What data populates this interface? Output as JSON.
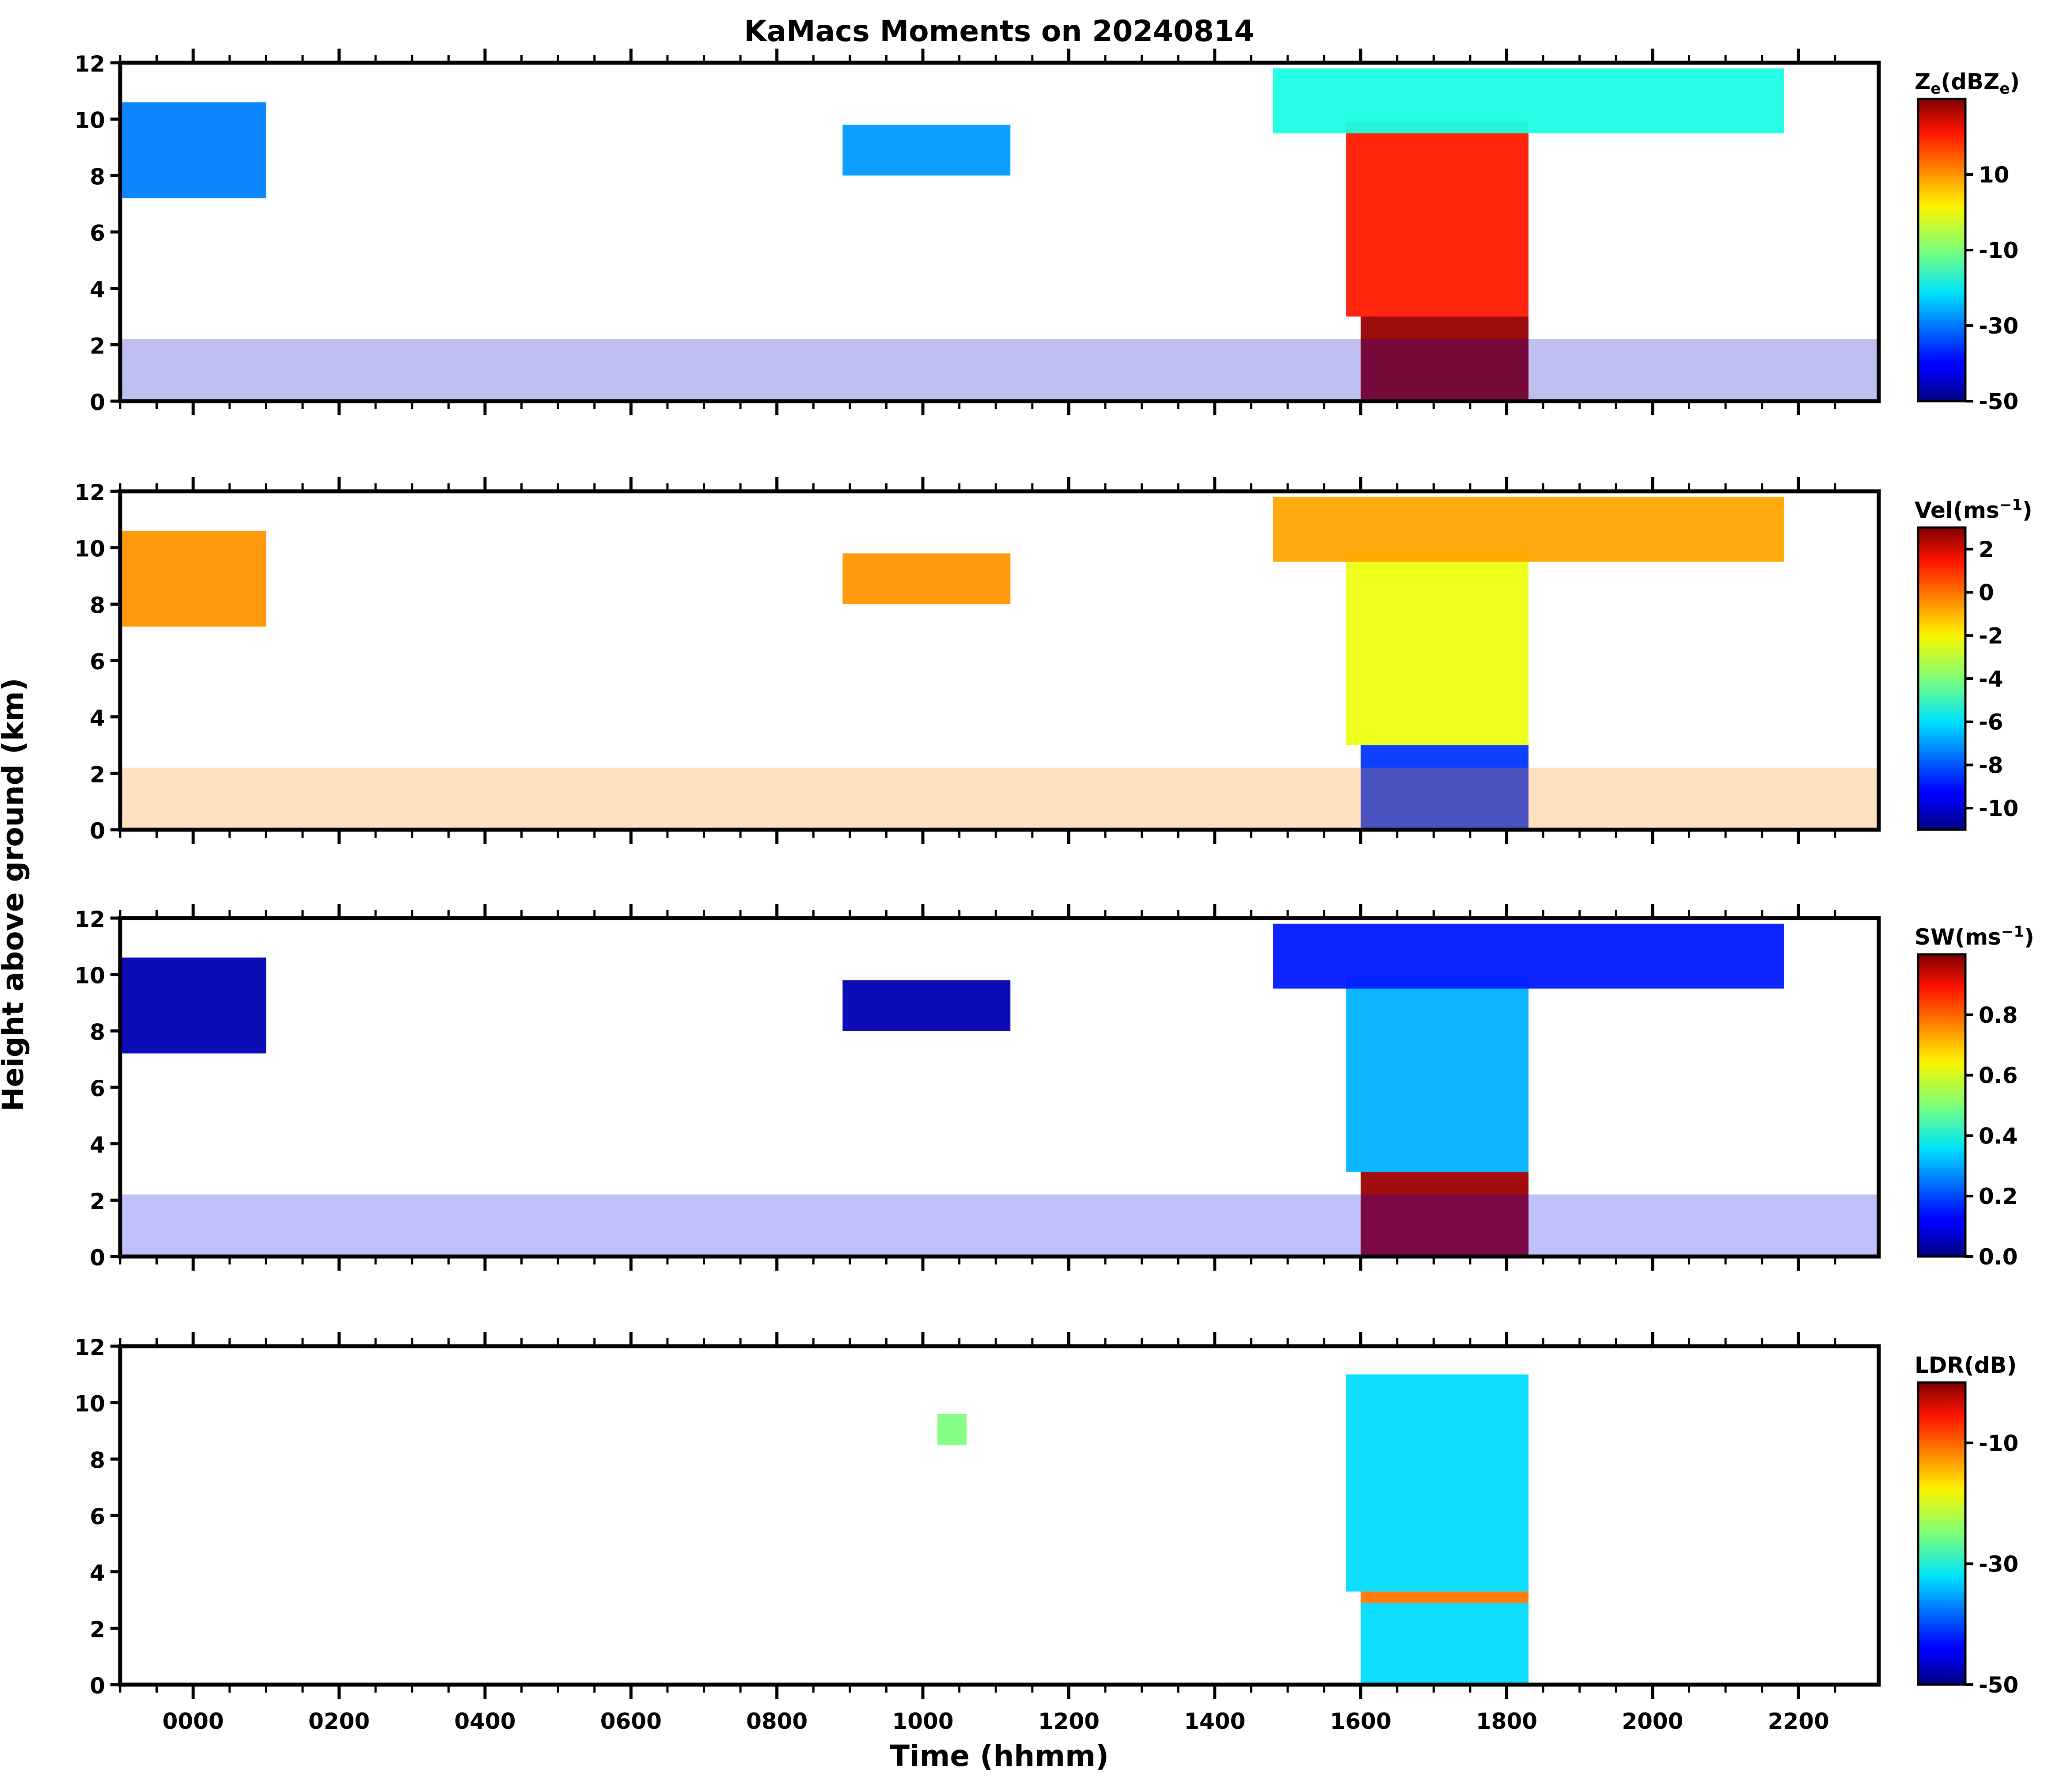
{
  "figure": {
    "title": "KaMacs Moments on 20240814",
    "ylabel": "Height above ground (km)",
    "xlabel": "Time (hhmm)"
  },
  "chart_data": [
    {
      "type": "heatmap",
      "panel": "reflectivity",
      "title": "KaMacs Moments on 20240814",
      "colorbar_label": "Ze(dBZe)",
      "colorbar_label_base": "Z",
      "colorbar_label_sub": "e",
      "colorbar_label_mid": "(dBZ",
      "colorbar_label_sub2": "e",
      "colorbar_label_end": ")",
      "colorbar_range": [
        -50,
        30
      ],
      "colorbar_ticks": [
        10,
        -10,
        -30,
        -50
      ],
      "colormap": "jet",
      "xlim_hours": [
        -1.0,
        23.1
      ],
      "ylim_km": [
        0,
        12
      ],
      "x_ticklabels": [],
      "y_ticklabels": [
        "0",
        "2",
        "4",
        "6",
        "8",
        "10",
        "12"
      ],
      "features": [
        {
          "t0": 15.8,
          "t1": 18.3,
          "h0": 3.0,
          "h1": 9.9,
          "value": 18
        },
        {
          "t0": 16.0,
          "t1": 18.3,
          "h0": 0.0,
          "h1": 3.0,
          "value": 28
        },
        {
          "t0": 14.8,
          "t1": 21.8,
          "h0": 9.5,
          "h1": 11.8,
          "value": -18
        },
        {
          "t0": -1.0,
          "t1": 1.0,
          "h0": 7.2,
          "h1": 10.6,
          "value": -30
        },
        {
          "t0": 8.9,
          "t1": 11.2,
          "h0": 8.0,
          "h1": 9.8,
          "value": -28
        },
        {
          "t0": -1.0,
          "t1": 23.1,
          "h0": 0.0,
          "h1": 2.2,
          "value": -45
        }
      ]
    },
    {
      "type": "heatmap",
      "panel": "velocity",
      "colorbar_label": "Vel(ms-1)",
      "colorbar_label_base": "Vel(ms",
      "colorbar_label_sup": "−1",
      "colorbar_label_end": ")",
      "colorbar_range": [
        -11,
        3
      ],
      "colorbar_ticks": [
        2,
        0,
        -2,
        -4,
        -6,
        -8,
        -10
      ],
      "colormap": "jet",
      "xlim_hours": [
        -1.0,
        23.1
      ],
      "ylim_km": [
        0,
        12
      ],
      "x_ticklabels": [],
      "y_ticklabels": [
        "0",
        "2",
        "4",
        "6",
        "8",
        "10",
        "12"
      ],
      "features": [
        {
          "t0": 15.8,
          "t1": 18.3,
          "h0": 3.0,
          "h1": 9.9,
          "value": -2.5
        },
        {
          "t0": 16.0,
          "t1": 18.3,
          "h0": 0.0,
          "h1": 3.0,
          "value": -8.5
        },
        {
          "t0": 14.8,
          "t1": 21.8,
          "h0": 9.5,
          "h1": 11.8,
          "value": -1.0
        },
        {
          "t0": -1.0,
          "t1": 1.0,
          "h0": 7.2,
          "h1": 10.6,
          "value": -0.8
        },
        {
          "t0": 8.9,
          "t1": 11.2,
          "h0": 8.0,
          "h1": 9.8,
          "value": -0.8
        },
        {
          "t0": -1.0,
          "t1": 23.1,
          "h0": 0.0,
          "h1": 2.2,
          "value": -0.6
        }
      ]
    },
    {
      "type": "heatmap",
      "panel": "spectrum_width",
      "colorbar_label": "SW(ms-1)",
      "colorbar_label_base": "SW(ms",
      "colorbar_label_sup": "−1",
      "colorbar_label_end": ")",
      "colorbar_range": [
        0.0,
        1.0
      ],
      "colorbar_ticks": [
        "0.8",
        "0.6",
        "0.4",
        "0.2",
        "0.0"
      ],
      "colormap": "jet",
      "xlim_hours": [
        -1.0,
        23.1
      ],
      "ylim_km": [
        0,
        12
      ],
      "x_ticklabels": [],
      "y_ticklabels": [
        "0",
        "2",
        "4",
        "6",
        "8",
        "10",
        "12"
      ],
      "features": [
        {
          "t0": 15.8,
          "t1": 18.3,
          "h0": 3.0,
          "h1": 9.9,
          "value": 0.3
        },
        {
          "t0": 16.0,
          "t1": 18.3,
          "h0": 0.0,
          "h1": 3.0,
          "value": 0.97
        },
        {
          "t0": 14.8,
          "t1": 21.8,
          "h0": 9.5,
          "h1": 11.8,
          "value": 0.15
        },
        {
          "t0": -1.0,
          "t1": 1.0,
          "h0": 7.2,
          "h1": 10.6,
          "value": 0.05
        },
        {
          "t0": 8.9,
          "t1": 11.2,
          "h0": 8.0,
          "h1": 9.8,
          "value": 0.05
        },
        {
          "t0": -1.0,
          "t1": 23.1,
          "h0": 0.0,
          "h1": 2.2,
          "value": 0.1
        }
      ]
    },
    {
      "type": "heatmap",
      "panel": "ldr",
      "colorbar_label": "LDR(dB)",
      "colorbar_range": [
        -50,
        0
      ],
      "colorbar_ticks": [
        -10,
        -30,
        -50
      ],
      "colormap": "jet",
      "xlim_hours": [
        -1.0,
        23.1
      ],
      "ylim_km": [
        0,
        12
      ],
      "xlabel": "Time (hhmm)",
      "x_ticklabels": [
        "0000",
        "0200",
        "0400",
        "0600",
        "0800",
        "1000",
        "1200",
        "1400",
        "1600",
        "1800",
        "2000",
        "2200"
      ],
      "y_ticklabels": [
        "0",
        "2",
        "4",
        "6",
        "8",
        "10",
        "12"
      ],
      "features": [
        {
          "t0": 15.8,
          "t1": 18.3,
          "h0": 3.3,
          "h1": 11.0,
          "value": -33
        },
        {
          "t0": 16.0,
          "t1": 18.3,
          "h0": 0.0,
          "h1": 2.9,
          "value": -33
        },
        {
          "t0": 16.0,
          "t1": 18.3,
          "h0": 2.9,
          "h1": 3.3,
          "value": -12
        },
        {
          "t0": 10.2,
          "t1": 10.6,
          "h0": 8.5,
          "h1": 9.6,
          "value": -25
        }
      ]
    }
  ]
}
